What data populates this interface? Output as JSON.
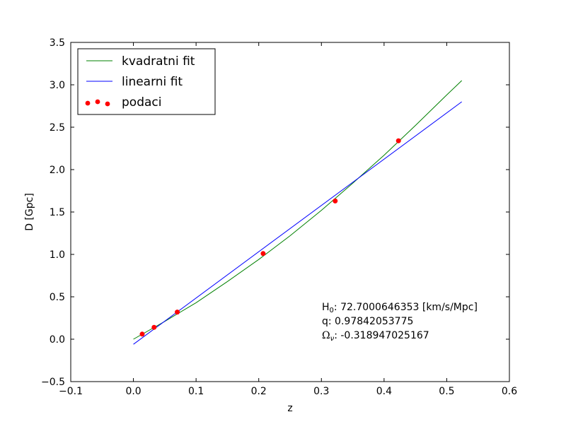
{
  "chart_data": {
    "type": "line",
    "xlabel": "z",
    "ylabel": "D [Gpc]",
    "xlim": [
      -0.1,
      0.6
    ],
    "ylim": [
      -0.5,
      3.5
    ],
    "xticks": [
      -0.1,
      0.0,
      0.1,
      0.2,
      0.3,
      0.4,
      0.5,
      0.6
    ],
    "yticks": [
      -0.5,
      0.0,
      0.5,
      1.0,
      1.5,
      2.0,
      2.5,
      3.0,
      3.5
    ],
    "xtick_labels": [
      "−0.1",
      "0.0",
      "0.1",
      "0.2",
      "0.3",
      "0.4",
      "0.5",
      "0.6"
    ],
    "ytick_labels": [
      "−0.5",
      "0.0",
      "0.5",
      "1.0",
      "1.5",
      "2.0",
      "2.5",
      "3.0",
      "3.5"
    ],
    "grid": false,
    "legend_position": "top-left",
    "series": [
      {
        "name": "kvadratni fit",
        "kind": "line",
        "color": "#008000",
        "x": [
          0.0,
          0.05,
          0.1,
          0.15,
          0.2,
          0.25,
          0.3,
          0.35,
          0.4,
          0.45,
          0.5,
          0.524
        ],
        "y": [
          0.0,
          0.21,
          0.43,
          0.68,
          0.94,
          1.22,
          1.52,
          1.84,
          2.17,
          2.52,
          2.88,
          3.05
        ]
      },
      {
        "name": "linearni fit",
        "kind": "line",
        "color": "#0000ff",
        "x": [
          0.0,
          0.524
        ],
        "y": [
          -0.06,
          2.8
        ]
      },
      {
        "name": "podaci",
        "kind": "scatter",
        "color": "#ff0000",
        "x": [
          0.014,
          0.033,
          0.07,
          0.207,
          0.322,
          0.423
        ],
        "y": [
          0.06,
          0.14,
          0.32,
          1.01,
          1.63,
          2.34
        ]
      }
    ],
    "annotation": {
      "h0_label": "H",
      "h0_sub": "0",
      "h0_text": ": 72.7000646353 [km/s/Mpc]",
      "q_text": "q: 0.97842053775",
      "omega_label": "Ω",
      "omega_sub": "ν",
      "omega_text": ": -0.318947025167"
    }
  }
}
